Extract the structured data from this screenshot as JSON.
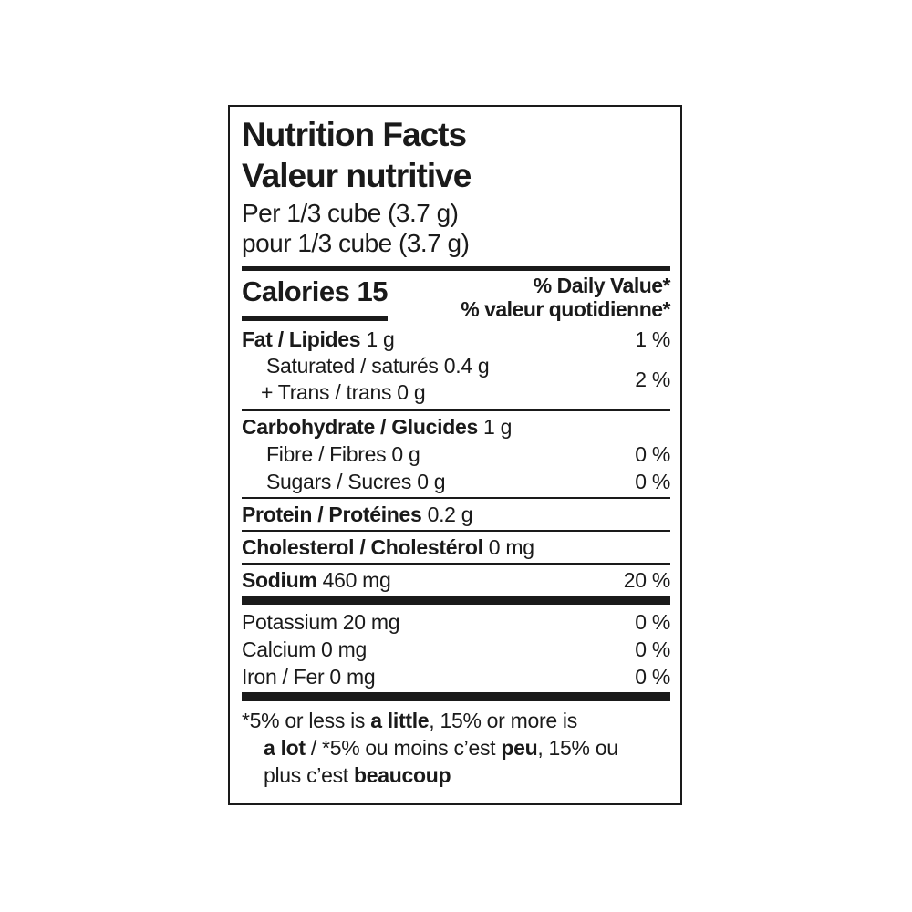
{
  "label": {
    "title_en": "Nutrition Facts",
    "title_fr": "Valeur nutritive",
    "serving_en": "Per 1/3 cube (3.7 g)",
    "serving_fr": "pour 1/3 cube (3.7 g)",
    "calories": "Calories 15",
    "dv_header_en": "% Daily Value*",
    "dv_header_fr": "% valeur quotidienne*",
    "nutrients": {
      "fat": {
        "name": "Fat / Lipides",
        "amount": " 1 g",
        "dv": "1 %"
      },
      "sat_trans": {
        "line1": "Saturated / saturés 0.4 g",
        "line2": "+ Trans / trans 0 g",
        "dv": "2 %"
      },
      "carbohydrate": {
        "name": "Carbohydrate / Glucides",
        "amount": " 1 g"
      },
      "fibre": {
        "name": "Fibre / Fibres 0 g",
        "dv": "0 %"
      },
      "sugars": {
        "name": "Sugars / Sucres 0 g",
        "dv": "0 %"
      },
      "protein": {
        "name": "Protein / Protéines",
        "amount": " 0.2 g"
      },
      "cholesterol": {
        "name": "Cholesterol / Cholestérol",
        "amount": " 0 mg"
      },
      "sodium": {
        "name": "Sodium",
        "amount": " 460 mg",
        "dv": "20 %"
      },
      "potassium": {
        "name": "Potassium 20 mg",
        "dv": "0 %"
      },
      "calcium": {
        "name": "Calcium 0 mg",
        "dv": "0 %"
      },
      "iron": {
        "name": "Iron / Fer 0 mg",
        "dv": "0 %"
      }
    },
    "footnote": {
      "l1_a": "*5% or less is ",
      "l1_b": "a little",
      "l1_c": ", 15% or more is",
      "l2_a": "a lot",
      "l2_b": " / *5% ou moins c’est ",
      "l2_c": "peu",
      "l2_d": ", 15% ou",
      "l3_a": "plus c’est ",
      "l3_b": "beaucoup"
    }
  }
}
